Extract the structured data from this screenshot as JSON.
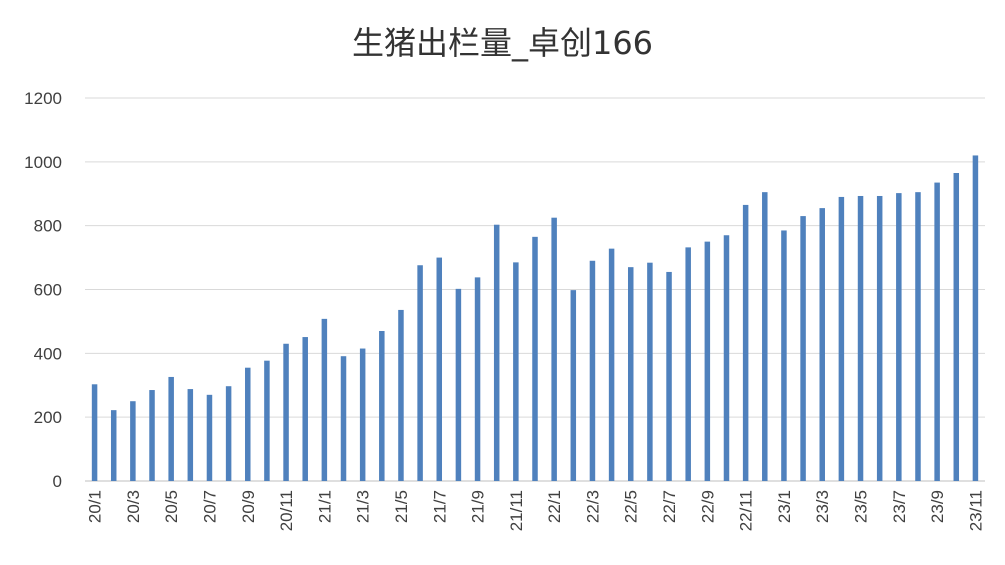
{
  "chart_data": {
    "type": "bar",
    "title": "生猪出栏量_卓创166",
    "xlabel": "",
    "ylabel": "",
    "ylim": [
      0,
      1200
    ],
    "yticks": [
      0,
      200,
      400,
      600,
      800,
      1000,
      1200
    ],
    "grid": true,
    "legend": "none",
    "bar_color": "#4f81bd",
    "categories": [
      "20/1",
      "20/2",
      "20/3",
      "20/4",
      "20/5",
      "20/6",
      "20/7",
      "20/8",
      "20/9",
      "20/10",
      "20/11",
      "20/12",
      "21/1",
      "21/2",
      "21/3",
      "21/4",
      "21/5",
      "21/6",
      "21/7",
      "21/8",
      "21/9",
      "21/10",
      "21/11",
      "21/12",
      "22/1",
      "22/2",
      "22/3",
      "22/4",
      "22/5",
      "22/6",
      "22/7",
      "22/8",
      "22/9",
      "22/10",
      "22/11",
      "22/12",
      "23/1",
      "23/2",
      "23/3",
      "23/4",
      "23/5",
      "23/6",
      "23/7",
      "23/8",
      "23/9",
      "23/10",
      "23/11"
    ],
    "tick_labels": [
      "20/1",
      "",
      "20/3",
      "",
      "20/5",
      "",
      "20/7",
      "",
      "20/9",
      "",
      "20/11",
      "",
      "21/1",
      "",
      "21/3",
      "",
      "21/5",
      "",
      "21/7",
      "",
      "21/9",
      "",
      "21/11",
      "",
      "22/1",
      "",
      "22/3",
      "",
      "22/5",
      "",
      "22/7",
      "",
      "22/9",
      "",
      "22/11",
      "",
      "23/1",
      "",
      "23/3",
      "",
      "23/5",
      "",
      "23/7",
      "",
      "23/9",
      "",
      "23/11"
    ],
    "values": [
      303,
      222,
      250,
      285,
      326,
      288,
      270,
      297,
      355,
      377,
      430,
      451,
      508,
      391,
      415,
      470,
      536,
      676,
      700,
      602,
      638,
      803,
      685,
      765,
      825,
      598,
      690,
      728,
      670,
      684,
      655,
      732,
      750,
      770,
      865,
      905,
      785,
      830,
      855,
      890,
      893,
      893,
      902,
      905,
      935,
      965,
      1020
    ]
  }
}
